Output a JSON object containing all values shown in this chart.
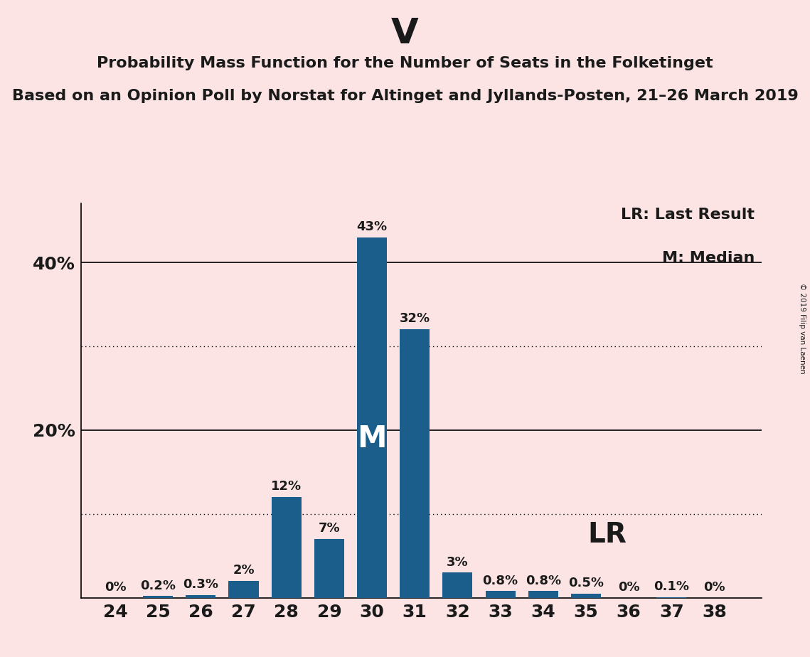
{
  "title": "V",
  "subtitle1": "Probability Mass Function for the Number of Seats in the Folketinget",
  "subtitle2": "Based on an Opinion Poll by Norstat for Altinget and Jyllands-Posten, 21–26 March 2019",
  "copyright": "© 2019 Filip van Laenen",
  "seats": [
    24,
    25,
    26,
    27,
    28,
    29,
    30,
    31,
    32,
    33,
    34,
    35,
    36,
    37,
    38
  ],
  "probabilities": [
    0.0,
    0.2,
    0.3,
    2.0,
    12.0,
    7.0,
    43.0,
    32.0,
    3.0,
    0.8,
    0.8,
    0.5,
    0.0,
    0.1,
    0.0
  ],
  "bar_color": "#1b5e8c",
  "background_color": "#fce4e4",
  "text_color": "#1a1a1a",
  "median_seat": 30,
  "last_result_seat": 34,
  "ylim": [
    0,
    47
  ],
  "ytick_values": [
    20,
    40
  ],
  "dotted_lines": [
    10,
    30
  ],
  "solid_lines": [
    20,
    40
  ],
  "legend_lr": "LR: Last Result",
  "legend_m": "M: Median",
  "lr_label": "LR",
  "m_label": "M",
  "bar_label_fontsize": 13,
  "title_fontsize": 36,
  "subtitle_fontsize": 16,
  "legend_fontsize": 16,
  "tick_fontsize": 18
}
